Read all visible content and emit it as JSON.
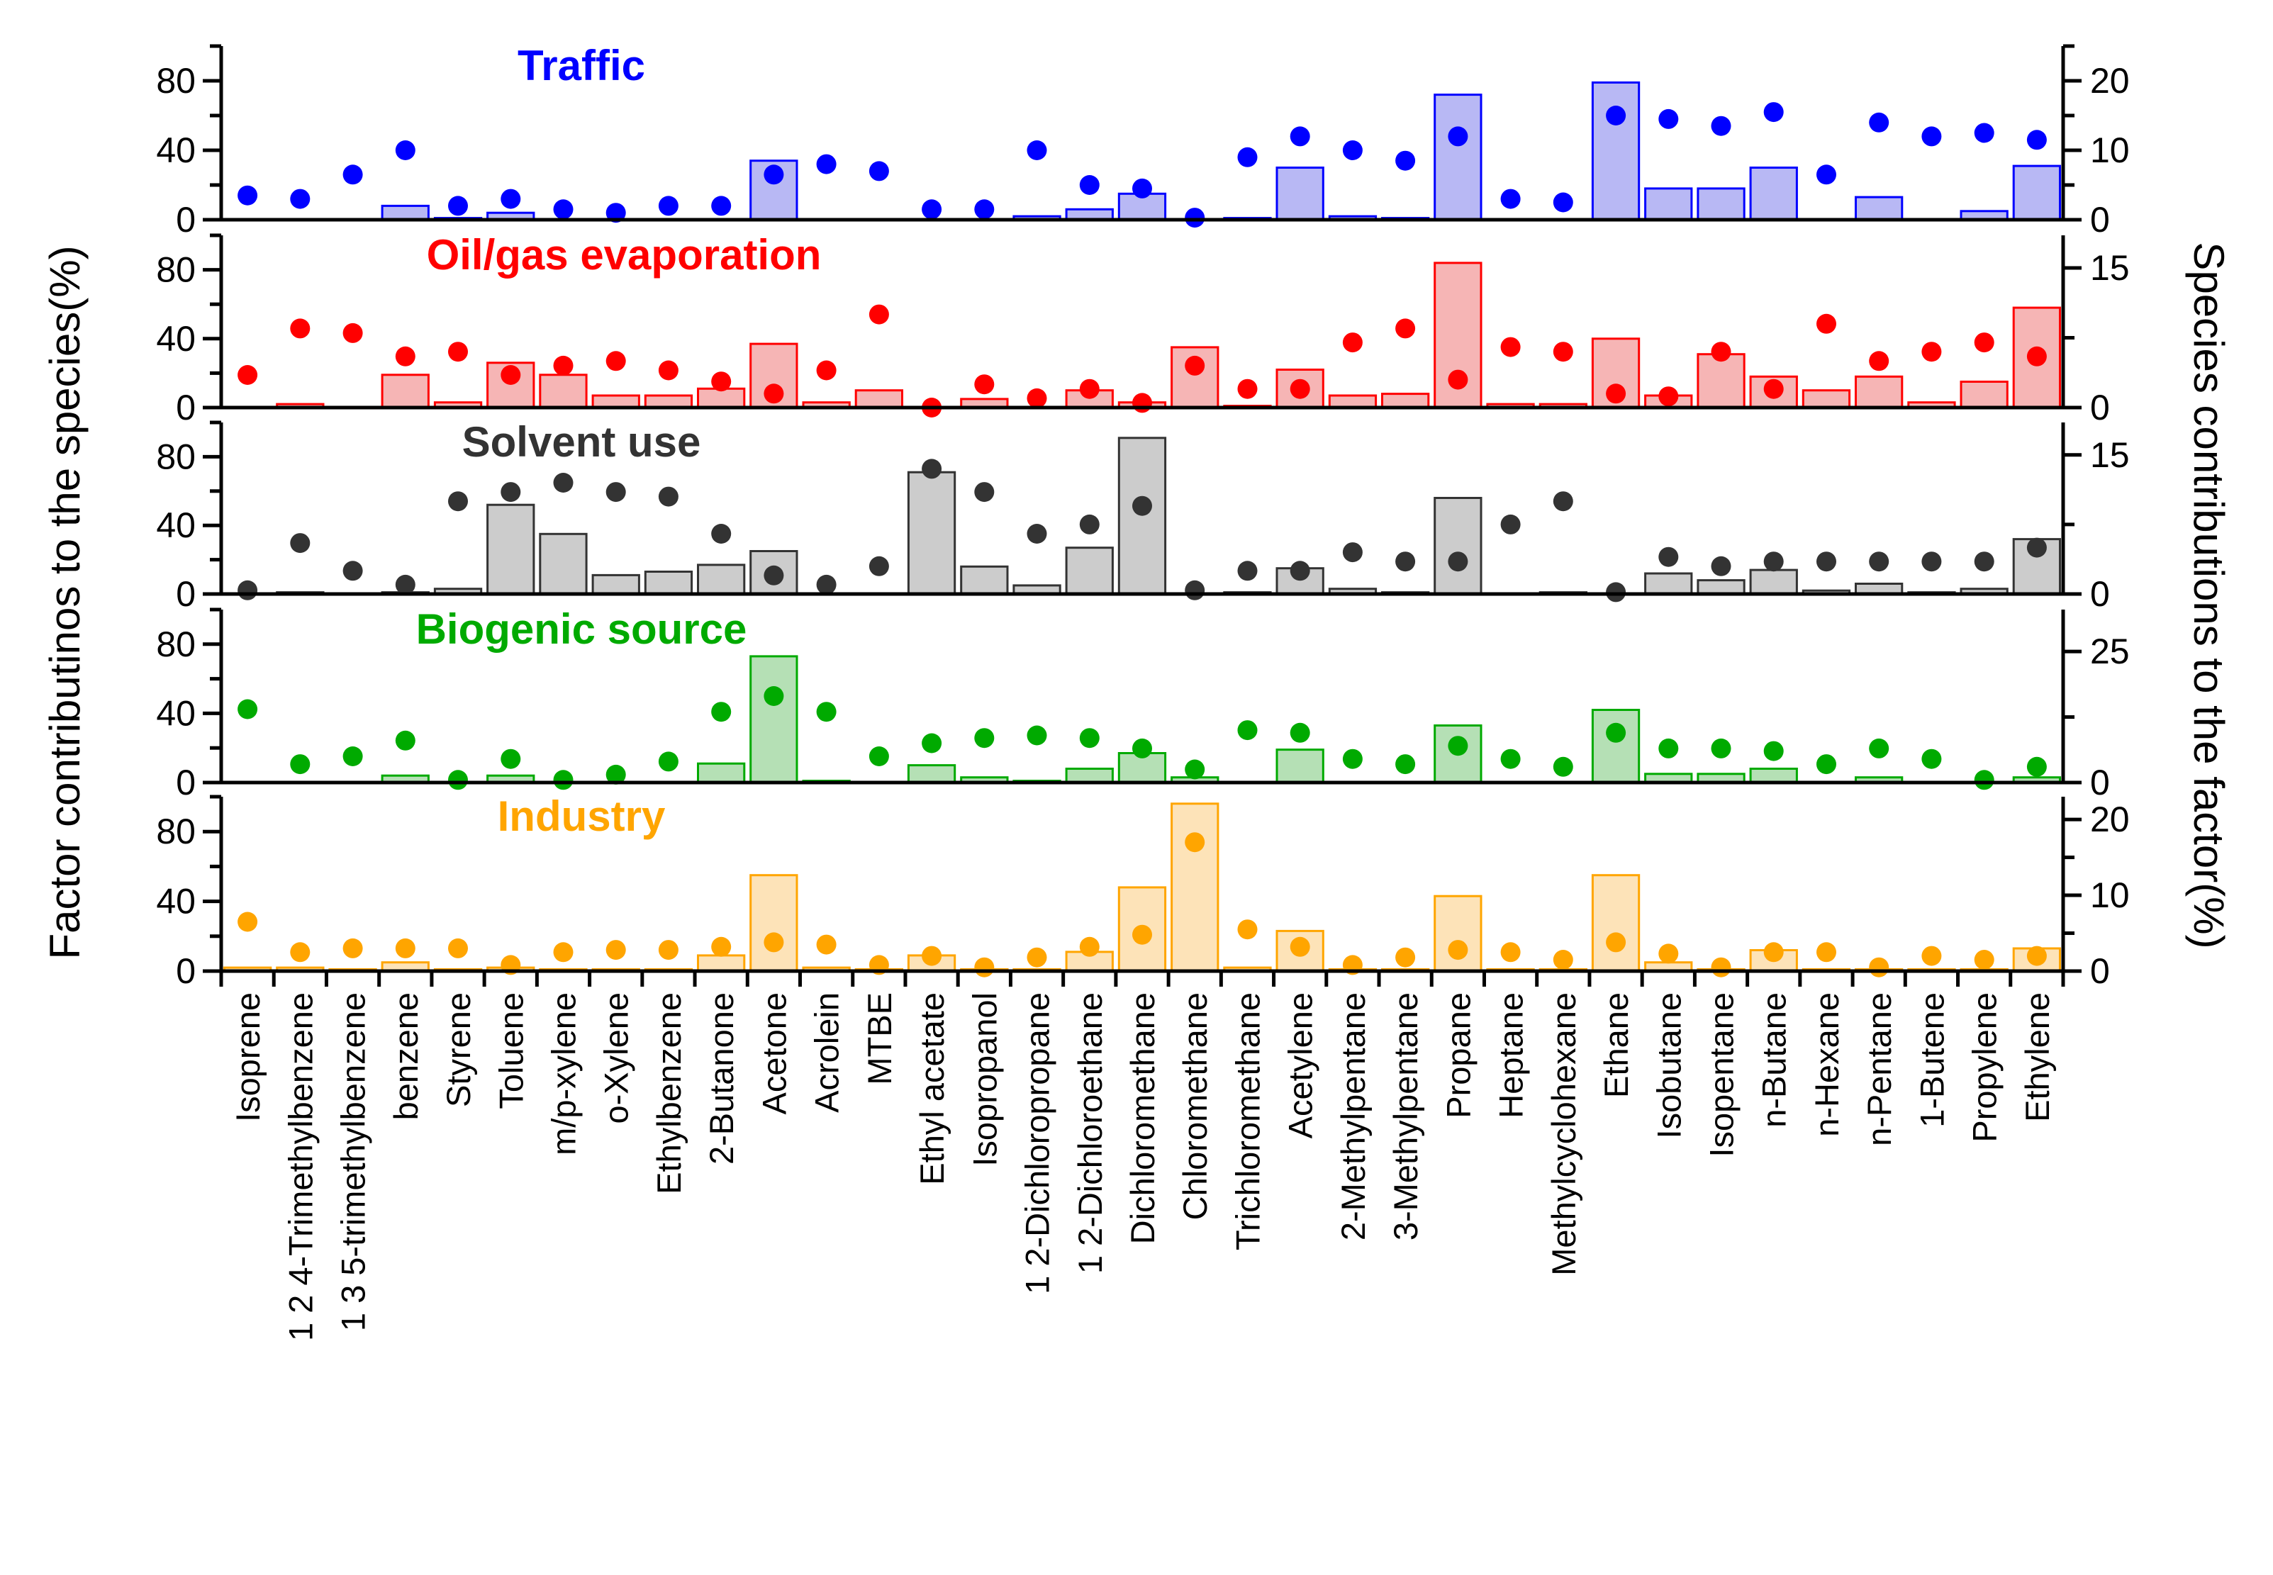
{
  "chart_data": {
    "type": "bar",
    "y_left_label": "Factor contributinos to the species(%)",
    "y_right_label": "Species contributions to the factor(%)",
    "categories": [
      "Isoprene",
      "1 2 4-Trimethylbenzene",
      "1 3 5-trimethylbenzene",
      "benzene",
      "Styrene",
      "Toluene",
      "m/p-xylene",
      "o-Xylene",
      "Ethylbenzene",
      "2-Butanone",
      "Acetone",
      "Acrolein",
      "MTBE",
      "Ethyl acetate",
      "Isopropanol",
      "1 2-Dichloropropane",
      "1 2-Dichloroethane",
      "Dichloromethane",
      "Chloromethane",
      "Trichloromethane",
      "Acetylene",
      "2-Methylpentane",
      "3-Methylpentane",
      "Propane",
      "Heptane",
      "Methylcyclohexane",
      "Ethane",
      "Isobutane",
      "Isopentane",
      "n-Butane",
      "n-Hexane",
      "n-Pentane",
      "1-Butene",
      "Propylene",
      "Ethylene"
    ],
    "panels": [
      {
        "name": "Traffic",
        "color": "#0000ff",
        "fill": "#b8b8f4",
        "left_ylim": [
          0,
          100
        ],
        "left_ticks": [
          0,
          40,
          80
        ],
        "right_ylim": [
          0,
          25
        ],
        "right_ticks": [
          0,
          10,
          20
        ],
        "bars_species_pct": [
          0,
          0,
          0,
          8,
          1,
          4,
          0,
          0,
          0,
          0,
          34,
          0,
          0,
          0,
          0,
          2,
          6,
          15,
          0,
          1,
          30,
          2,
          1,
          72,
          0,
          0,
          79,
          18,
          18,
          30,
          0,
          13,
          0,
          5,
          31
        ],
        "dots_factor_pct": [
          3.5,
          3,
          6.5,
          10,
          2,
          3,
          1.5,
          1,
          2,
          2,
          6.5,
          8,
          7,
          1.5,
          1.5,
          10,
          5,
          4.5,
          0.3,
          9,
          12,
          10,
          8.5,
          12,
          3,
          2.5,
          15,
          14.5,
          13.5,
          15.5,
          6.5,
          14,
          12,
          12.5,
          11.5
        ]
      },
      {
        "name": "Oil/gas evaporation",
        "color": "#ff0000",
        "fill": "#f6b5b5",
        "left_ylim": [
          0,
          100
        ],
        "left_ticks": [
          0,
          40,
          80
        ],
        "right_ylim": [
          0,
          18.5
        ],
        "right_ticks": [
          0,
          15
        ],
        "bars_species_pct": [
          0,
          2,
          0,
          19,
          3,
          26,
          19,
          7,
          7,
          11,
          37,
          3,
          10,
          0,
          5,
          0,
          10,
          3,
          35,
          1,
          22,
          7,
          8,
          84,
          2,
          2,
          40,
          7,
          31,
          18,
          10,
          18,
          3,
          15,
          58
        ],
        "dots_factor_pct": [
          3.5,
          8.5,
          8,
          5.5,
          6,
          3.5,
          4.5,
          5,
          4,
          2.8,
          1.5,
          4,
          10,
          0,
          2.5,
          1,
          2,
          0.5,
          4.5,
          2,
          2,
          7,
          8.5,
          3,
          6.5,
          6,
          1.5,
          1.2,
          6,
          2,
          9,
          5,
          6,
          7,
          5.5
        ]
      },
      {
        "name": "Solvent use",
        "color": "#333333",
        "fill": "#cccccc",
        "left_ylim": [
          0,
          100
        ],
        "left_ticks": [
          0,
          40,
          80
        ],
        "right_ylim": [
          0,
          18.5
        ],
        "right_ticks": [
          0,
          15
        ],
        "bars_species_pct": [
          0,
          1,
          0,
          1,
          3,
          52,
          35,
          11,
          13,
          17,
          25,
          0,
          0,
          71,
          16,
          5,
          27,
          91,
          0,
          1,
          15,
          3,
          1,
          56,
          0,
          1,
          0,
          12,
          8,
          14,
          2,
          6,
          1,
          3,
          32
        ],
        "dots_factor_pct": [
          0.4,
          5.5,
          2.5,
          1,
          10,
          11,
          12,
          11,
          10.5,
          6.5,
          2,
          1,
          3,
          13.5,
          11,
          6.5,
          7.5,
          9.5,
          0.4,
          2.5,
          2.5,
          4.5,
          3.5,
          3.5,
          7.5,
          10,
          0.2,
          4,
          3,
          3.5,
          3.5,
          3.5,
          3.5,
          3.5,
          5
        ]
      },
      {
        "name": "Biogenic source",
        "color": "#00aa00",
        "fill": "#b5e0b5",
        "left_ylim": [
          0,
          100
        ],
        "left_ticks": [
          0,
          40,
          80
        ],
        "right_ylim": [
          0,
          33
        ],
        "right_ticks": [
          0,
          25
        ],
        "bars_species_pct": [
          0,
          0,
          0,
          4,
          0,
          4,
          0,
          0,
          0,
          11,
          73,
          1,
          0,
          10,
          3,
          1,
          8,
          17,
          3,
          0,
          19,
          0,
          0,
          33,
          0,
          0,
          42,
          5,
          5,
          8,
          0,
          3,
          0,
          0,
          3
        ],
        "dots_factor_pct": [
          14,
          3.5,
          5,
          8,
          0.5,
          4.5,
          0.5,
          1.5,
          4,
          13.5,
          16.5,
          13.5,
          5,
          7.5,
          8.5,
          9,
          8.5,
          6.5,
          2.5,
          10,
          9.5,
          4.5,
          3.5,
          7,
          4.5,
          3,
          9.5,
          6.5,
          6.5,
          6,
          3.5,
          6.5,
          4.5,
          0.5,
          3
        ]
      },
      {
        "name": "Industry",
        "color": "#ffa500",
        "fill": "#fde3b8",
        "left_ylim": [
          0,
          100
        ],
        "left_ticks": [
          0,
          40,
          80
        ],
        "right_ylim": [
          0,
          23
        ],
        "right_ticks": [
          0,
          10,
          20
        ],
        "bars_species_pct": [
          2,
          2,
          1,
          5,
          1,
          2,
          1,
          1,
          1,
          9,
          55,
          2,
          1,
          9,
          1,
          1,
          11,
          48,
          96,
          2,
          23,
          1,
          1,
          43,
          1,
          1,
          55,
          5,
          1,
          12,
          1,
          1,
          1,
          1,
          13
        ],
        "dots_factor_pct": [
          6.5,
          2.5,
          3,
          3,
          3,
          0.8,
          2.5,
          2.8,
          2.8,
          3.2,
          3.8,
          3.5,
          0.8,
          2,
          0.5,
          1.8,
          3.2,
          4.8,
          17,
          5.5,
          3.2,
          0.8,
          1.8,
          2.8,
          2.5,
          1.5,
          3.8,
          2.3,
          0.5,
          2.5,
          2.5,
          0.5,
          2,
          1.5,
          2
        ]
      }
    ]
  }
}
